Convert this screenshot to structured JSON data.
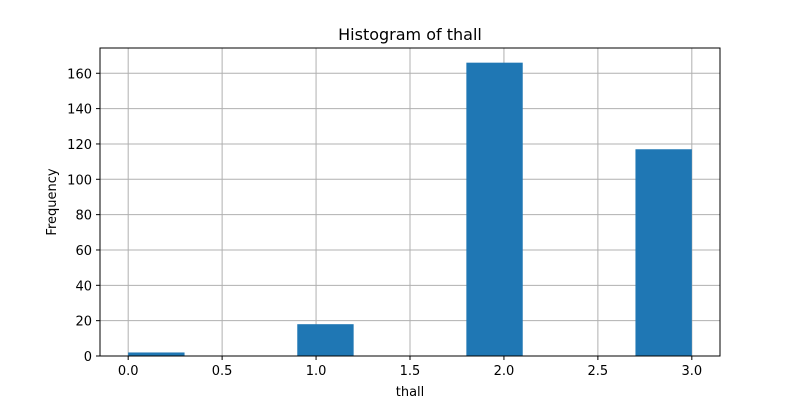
{
  "chart_data": {
    "type": "bar",
    "title": "Histogram of thall",
    "xlabel": "thall",
    "ylabel": "Frequency",
    "xlim": [
      -0.15,
      3.15
    ],
    "ylim": [
      0,
      174.3
    ],
    "grid": true,
    "bar_color": "#1f77b4",
    "bins": [
      {
        "start": 0.0,
        "end": 0.3,
        "value": 2
      },
      {
        "start": 0.3,
        "end": 0.6,
        "value": 0
      },
      {
        "start": 0.6,
        "end": 0.9,
        "value": 0
      },
      {
        "start": 0.9,
        "end": 1.2,
        "value": 18
      },
      {
        "start": 1.2,
        "end": 1.5,
        "value": 0
      },
      {
        "start": 1.5,
        "end": 1.8,
        "value": 0
      },
      {
        "start": 1.8,
        "end": 2.1,
        "value": 166
      },
      {
        "start": 2.1,
        "end": 2.4,
        "value": 0
      },
      {
        "start": 2.4,
        "end": 2.7,
        "value": 0
      },
      {
        "start": 2.7,
        "end": 3.0,
        "value": 117
      }
    ],
    "xticks": [
      {
        "value": 0.0,
        "label": "0.0"
      },
      {
        "value": 0.5,
        "label": "0.5"
      },
      {
        "value": 1.0,
        "label": "1.0"
      },
      {
        "value": 1.5,
        "label": "1.5"
      },
      {
        "value": 2.0,
        "label": "2.0"
      },
      {
        "value": 2.5,
        "label": "2.5"
      },
      {
        "value": 3.0,
        "label": "3.0"
      }
    ],
    "yticks": [
      {
        "value": 0,
        "label": "0"
      },
      {
        "value": 20,
        "label": "20"
      },
      {
        "value": 40,
        "label": "40"
      },
      {
        "value": 60,
        "label": "60"
      },
      {
        "value": 80,
        "label": "80"
      },
      {
        "value": 100,
        "label": "100"
      },
      {
        "value": 120,
        "label": "120"
      },
      {
        "value": 140,
        "label": "140"
      },
      {
        "value": 160,
        "label": "160"
      }
    ]
  }
}
